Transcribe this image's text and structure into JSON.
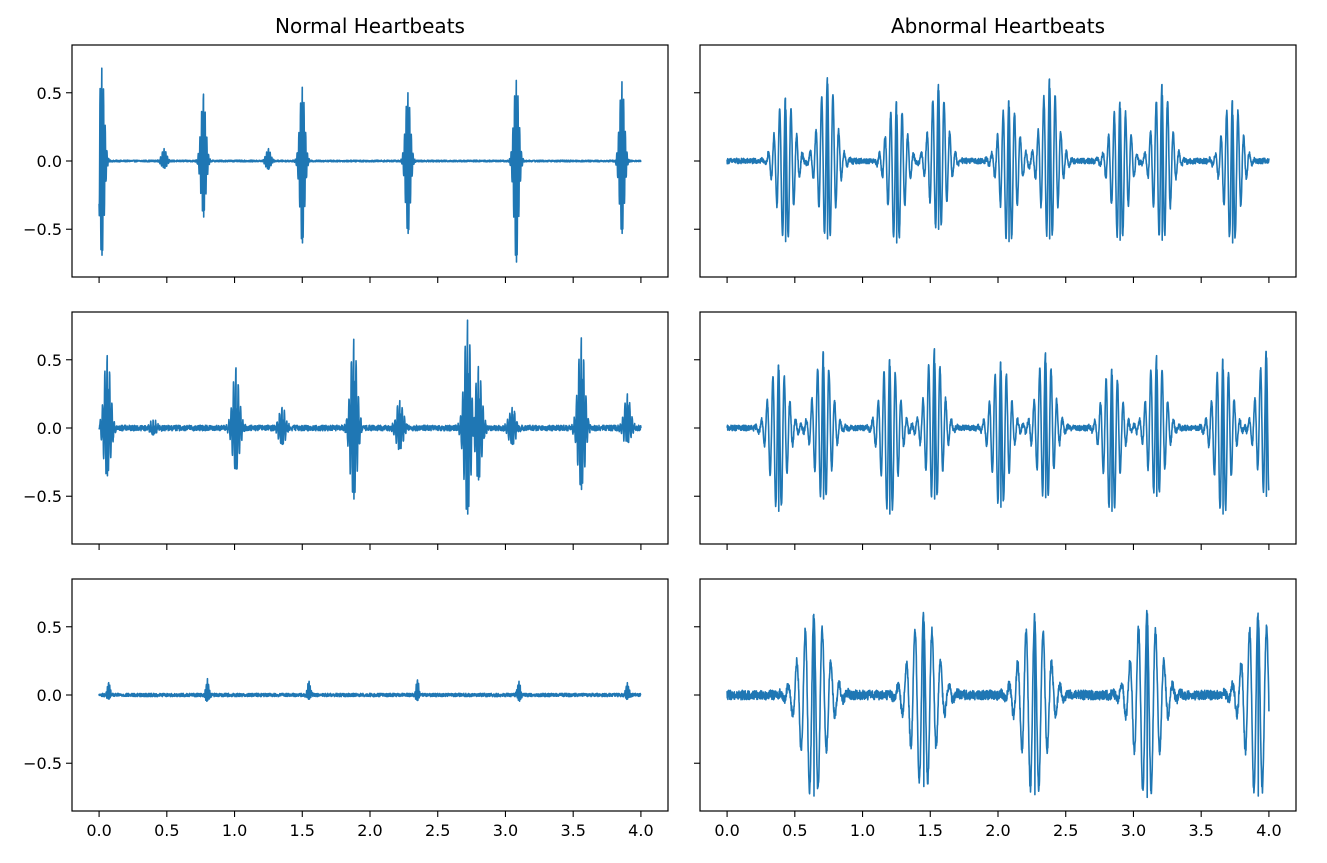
{
  "figure": {
    "titles": [
      "Normal Heartbeats",
      "Abnormal Heartbeats"
    ],
    "line_color": "#1f77b4"
  },
  "chart_data": [
    {
      "type": "line",
      "panel": "normal-1",
      "column": 0,
      "row": 0,
      "title": "Normal Heartbeats",
      "xlim": [
        -0.2,
        4.2
      ],
      "ylim": [
        -0.85,
        0.85
      ],
      "xticks": [
        0.0,
        0.5,
        1.0,
        1.5,
        2.0,
        2.5,
        3.0,
        3.5,
        4.0
      ],
      "xtick_labels": [
        "",
        "",
        "",
        "",
        "",
        "",
        "",
        "",
        ""
      ],
      "yticks": [
        0.5,
        0.0,
        -0.5
      ],
      "ytick_labels": [
        "0.5",
        "0.0",
        "−0.5"
      ],
      "peaks": [
        {
          "x": 0.02,
          "max": 0.68,
          "min": -0.69
        },
        {
          "x": 0.48,
          "max": 0.09,
          "min": -0.05
        },
        {
          "x": 0.77,
          "max": 0.49,
          "min": -0.41
        },
        {
          "x": 1.25,
          "max": 0.09,
          "min": -0.06
        },
        {
          "x": 1.5,
          "max": 0.54,
          "min": -0.6
        },
        {
          "x": 2.28,
          "max": 0.5,
          "min": -0.53
        },
        {
          "x": 3.08,
          "max": 0.59,
          "min": -0.74
        },
        {
          "x": 3.86,
          "max": 0.58,
          "min": -0.53
        }
      ],
      "noise": 0.006,
      "decay": 0.018,
      "xmax": 4.0
    },
    {
      "type": "line",
      "panel": "abnormal-1",
      "column": 1,
      "row": 0,
      "title": "Abnormal Heartbeats",
      "xlim": [
        -0.2,
        4.2
      ],
      "ylim": [
        -0.85,
        0.85
      ],
      "xticks": [
        0.0,
        0.5,
        1.0,
        1.5,
        2.0,
        2.5,
        3.0,
        3.5,
        4.0
      ],
      "xtick_labels": [
        "",
        "",
        "",
        "",
        "",
        "",
        "",
        "",
        ""
      ],
      "yticks": [
        0.5,
        0.0,
        -0.5
      ],
      "ytick_labels": [
        "",
        "",
        ""
      ],
      "peaks": [
        {
          "x": 0.43,
          "max": 0.46,
          "min": -0.59
        },
        {
          "x": 0.74,
          "max": 0.61,
          "min": -0.57
        },
        {
          "x": 1.25,
          "max": 0.43,
          "min": -0.6
        },
        {
          "x": 1.56,
          "max": 0.56,
          "min": -0.5
        },
        {
          "x": 2.08,
          "max": 0.44,
          "min": -0.59
        },
        {
          "x": 2.38,
          "max": 0.6,
          "min": -0.57
        },
        {
          "x": 2.9,
          "max": 0.43,
          "min": -0.58
        },
        {
          "x": 3.21,
          "max": 0.56,
          "min": -0.58
        },
        {
          "x": 3.73,
          "max": 0.44,
          "min": -0.6
        }
      ],
      "noise": 0.02,
      "decay": 0.06,
      "xmax": 4.0
    },
    {
      "type": "line",
      "panel": "normal-2",
      "column": 0,
      "row": 1,
      "xlim": [
        -0.2,
        4.2
      ],
      "ylim": [
        -0.85,
        0.85
      ],
      "xticks": [
        0.0,
        0.5,
        1.0,
        1.5,
        2.0,
        2.5,
        3.0,
        3.5,
        4.0
      ],
      "xtick_labels": [
        "",
        "",
        "",
        "",
        "",
        "",
        "",
        "",
        ""
      ],
      "yticks": [
        0.5,
        0.0,
        -0.5
      ],
      "ytick_labels": [
        "0.5",
        "0.0",
        "−0.5"
      ],
      "peaks": [
        {
          "x": 0.06,
          "max": 0.53,
          "min": -0.35
        },
        {
          "x": 0.4,
          "max": 0.05,
          "min": -0.05
        },
        {
          "x": 1.01,
          "max": 0.44,
          "min": -0.3
        },
        {
          "x": 1.35,
          "max": 0.15,
          "min": -0.12
        },
        {
          "x": 1.88,
          "max": 0.65,
          "min": -0.52
        },
        {
          "x": 2.22,
          "max": 0.2,
          "min": -0.15
        },
        {
          "x": 2.72,
          "max": 0.79,
          "min": -0.63
        },
        {
          "x": 2.8,
          "max": 0.45,
          "min": -0.38
        },
        {
          "x": 3.05,
          "max": 0.15,
          "min": -0.12
        },
        {
          "x": 3.56,
          "max": 0.66,
          "min": -0.45
        },
        {
          "x": 3.9,
          "max": 0.25,
          "min": -0.1
        }
      ],
      "noise": 0.02,
      "decay": 0.025,
      "xmax": 4.0
    },
    {
      "type": "line",
      "panel": "abnormal-2",
      "column": 1,
      "row": 1,
      "xlim": [
        -0.2,
        4.2
      ],
      "ylim": [
        -0.85,
        0.85
      ],
      "xticks": [
        0.0,
        0.5,
        1.0,
        1.5,
        2.0,
        2.5,
        3.0,
        3.5,
        4.0
      ],
      "xtick_labels": [
        "",
        "",
        "",
        "",
        "",
        "",
        "",
        "",
        ""
      ],
      "yticks": [
        0.5,
        0.0,
        -0.5
      ],
      "ytick_labels": [
        "",
        "",
        ""
      ],
      "peaks": [
        {
          "x": 0.38,
          "max": 0.46,
          "min": -0.61
        },
        {
          "x": 0.71,
          "max": 0.55,
          "min": -0.52
        },
        {
          "x": 1.2,
          "max": 0.5,
          "min": -0.63
        },
        {
          "x": 1.53,
          "max": 0.58,
          "min": -0.52
        },
        {
          "x": 2.02,
          "max": 0.48,
          "min": -0.58
        },
        {
          "x": 2.35,
          "max": 0.55,
          "min": -0.51
        },
        {
          "x": 2.84,
          "max": 0.43,
          "min": -0.61
        },
        {
          "x": 3.17,
          "max": 0.53,
          "min": -0.5
        },
        {
          "x": 3.66,
          "max": 0.5,
          "min": -0.63
        },
        {
          "x": 3.98,
          "max": 0.56,
          "min": -0.5
        }
      ],
      "noise": 0.02,
      "decay": 0.06,
      "xmax": 4.0
    },
    {
      "type": "line",
      "panel": "normal-3",
      "column": 0,
      "row": 2,
      "xlim": [
        -0.2,
        4.2
      ],
      "ylim": [
        -0.85,
        0.85
      ],
      "xticks": [
        0.0,
        0.5,
        1.0,
        1.5,
        2.0,
        2.5,
        3.0,
        3.5,
        4.0
      ],
      "xtick_labels": [
        "0.0",
        "0.5",
        "1.0",
        "1.5",
        "2.0",
        "2.5",
        "3.0",
        "3.5",
        "4.0"
      ],
      "yticks": [
        0.5,
        0.0,
        -0.5
      ],
      "ytick_labels": [
        "0.5",
        "0.0",
        "−0.5"
      ],
      "peaks": [
        {
          "x": 0.07,
          "max": 0.09,
          "min": -0.03
        },
        {
          "x": 0.8,
          "max": 0.12,
          "min": -0.04
        },
        {
          "x": 1.55,
          "max": 0.1,
          "min": -0.03
        },
        {
          "x": 2.35,
          "max": 0.11,
          "min": -0.04
        },
        {
          "x": 3.1,
          "max": 0.1,
          "min": -0.04
        },
        {
          "x": 3.9,
          "max": 0.09,
          "min": -0.03
        }
      ],
      "noise": 0.012,
      "decay": 0.012,
      "xmax": 4.0
    },
    {
      "type": "line",
      "panel": "abnormal-3",
      "column": 1,
      "row": 2,
      "xlim": [
        -0.2,
        4.2
      ],
      "ylim": [
        -0.85,
        0.85
      ],
      "xticks": [
        0.0,
        0.5,
        1.0,
        1.5,
        2.0,
        2.5,
        3.0,
        3.5,
        4.0
      ],
      "xtick_labels": [
        "0.0",
        "0.5",
        "1.0",
        "1.5",
        "2.0",
        "2.5",
        "3.0",
        "3.5",
        "4.0"
      ],
      "yticks": [
        0.5,
        0.0,
        -0.5
      ],
      "ytick_labels": [
        "",
        "",
        ""
      ],
      "peaks": [
        {
          "x": 0.64,
          "max": 0.59,
          "min": -0.74
        },
        {
          "x": 1.45,
          "max": 0.58,
          "min": -0.67
        },
        {
          "x": 2.27,
          "max": 0.57,
          "min": -0.73
        },
        {
          "x": 3.1,
          "max": 0.6,
          "min": -0.75
        },
        {
          "x": 3.92,
          "max": 0.6,
          "min": -0.74
        }
      ],
      "noise": 0.035,
      "decay": 0.09,
      "xmax": 4.0
    }
  ]
}
